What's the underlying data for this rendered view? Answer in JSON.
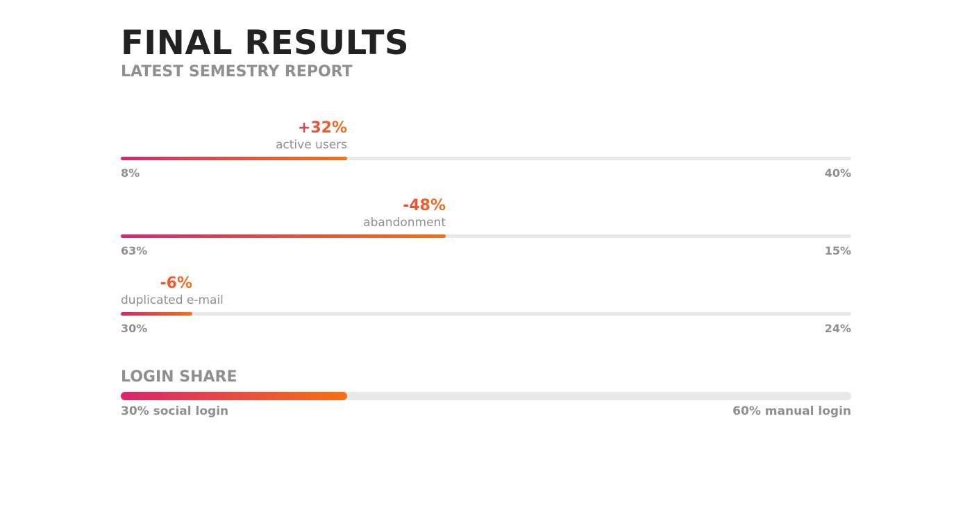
{
  "header": {
    "title": "FINAL RESULTS",
    "subtitle": "LATEST SEMESTRY REPORT"
  },
  "colors": {
    "gradient_start": "#d9256e",
    "gradient_end": "#f77014",
    "track": "#e8e8e8",
    "title": "#222222",
    "muted": "#8f8f8f"
  },
  "chart_data": [
    {
      "type": "bar",
      "orientation": "horizontal",
      "metrics": [
        {
          "delta": "+32%",
          "label": "active users",
          "start": "8%",
          "end": "40%",
          "fill_fraction": 0.31
        },
        {
          "delta": "-48%",
          "label": "abandonment",
          "start": "63%",
          "end": "15%",
          "fill_fraction": 0.445
        },
        {
          "delta": "-6%",
          "label": "duplicated e-mail",
          "start": "30%",
          "end": "24%",
          "fill_fraction": 0.098
        }
      ]
    },
    {
      "type": "bar",
      "orientation": "horizontal",
      "title": "LOGIN SHARE",
      "left_label": "30% social login",
      "right_label": "60% manual login",
      "fill_fraction": 0.31
    }
  ]
}
